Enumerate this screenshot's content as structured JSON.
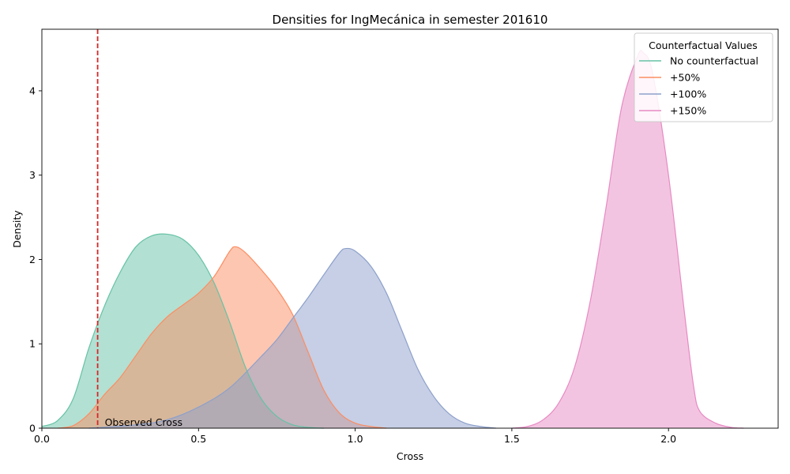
{
  "chart_data": {
    "type": "area",
    "title": "Densities for IngMecánica in semester 201610",
    "xlabel": "Cross",
    "ylabel": "Density",
    "xlim": [
      0,
      2.35
    ],
    "ylim": [
      0,
      4.73
    ],
    "x_ticks": [
      0.0,
      0.5,
      1.0,
      1.5,
      2.0
    ],
    "x_tick_labels": [
      "0.0",
      "0.5",
      "1.0",
      "1.5",
      "2.0"
    ],
    "y_ticks": [
      0,
      1,
      2,
      3,
      4
    ],
    "y_tick_labels": [
      "0",
      "1",
      "2",
      "3",
      "4"
    ],
    "grid": false,
    "legend": {
      "title": "Counterfactual Values",
      "placement": "top-right"
    },
    "reference_line": {
      "x": 0.178,
      "label": "Observed Cross",
      "color": "#d62728",
      "style": "dashed"
    },
    "series": [
      {
        "name": "No counterfactual",
        "color": "#66c2a5",
        "points": [
          [
            0.0,
            0.02
          ],
          [
            0.05,
            0.09
          ],
          [
            0.1,
            0.35
          ],
          [
            0.15,
            0.95
          ],
          [
            0.2,
            1.45
          ],
          [
            0.25,
            1.85
          ],
          [
            0.3,
            2.15
          ],
          [
            0.35,
            2.28
          ],
          [
            0.4,
            2.3
          ],
          [
            0.45,
            2.24
          ],
          [
            0.5,
            2.05
          ],
          [
            0.55,
            1.72
          ],
          [
            0.6,
            1.25
          ],
          [
            0.65,
            0.72
          ],
          [
            0.7,
            0.35
          ],
          [
            0.75,
            0.14
          ],
          [
            0.8,
            0.04
          ],
          [
            0.85,
            0.01
          ],
          [
            0.9,
            0.0
          ]
        ]
      },
      {
        "name": "+50%",
        "color": "#fc8d62",
        "points": [
          [
            0.05,
            0.0
          ],
          [
            0.1,
            0.03
          ],
          [
            0.15,
            0.17
          ],
          [
            0.2,
            0.4
          ],
          [
            0.25,
            0.6
          ],
          [
            0.3,
            0.86
          ],
          [
            0.35,
            1.12
          ],
          [
            0.4,
            1.32
          ],
          [
            0.45,
            1.46
          ],
          [
            0.5,
            1.6
          ],
          [
            0.55,
            1.8
          ],
          [
            0.6,
            2.1
          ],
          [
            0.62,
            2.15
          ],
          [
            0.65,
            2.08
          ],
          [
            0.7,
            1.88
          ],
          [
            0.75,
            1.65
          ],
          [
            0.8,
            1.35
          ],
          [
            0.85,
            0.9
          ],
          [
            0.9,
            0.45
          ],
          [
            0.95,
            0.18
          ],
          [
            1.0,
            0.06
          ],
          [
            1.05,
            0.02
          ],
          [
            1.1,
            0.0
          ]
        ]
      },
      {
        "name": "+100%",
        "color": "#8da0cb",
        "points": [
          [
            0.15,
            0.0
          ],
          [
            0.3,
            0.04
          ],
          [
            0.4,
            0.1
          ],
          [
            0.5,
            0.25
          ],
          [
            0.6,
            0.48
          ],
          [
            0.7,
            0.85
          ],
          [
            0.75,
            1.05
          ],
          [
            0.8,
            1.3
          ],
          [
            0.85,
            1.55
          ],
          [
            0.9,
            1.82
          ],
          [
            0.95,
            2.08
          ],
          [
            0.97,
            2.13
          ],
          [
            1.0,
            2.1
          ],
          [
            1.05,
            1.92
          ],
          [
            1.1,
            1.6
          ],
          [
            1.15,
            1.15
          ],
          [
            1.2,
            0.7
          ],
          [
            1.25,
            0.38
          ],
          [
            1.3,
            0.17
          ],
          [
            1.35,
            0.06
          ],
          [
            1.4,
            0.02
          ],
          [
            1.45,
            0.0
          ]
        ]
      },
      {
        "name": "+150%",
        "color": "#e78ac3",
        "points": [
          [
            1.5,
            0.0
          ],
          [
            1.55,
            0.02
          ],
          [
            1.6,
            0.1
          ],
          [
            1.65,
            0.3
          ],
          [
            1.7,
            0.72
          ],
          [
            1.75,
            1.5
          ],
          [
            1.8,
            2.6
          ],
          [
            1.85,
            3.8
          ],
          [
            1.9,
            4.4
          ],
          [
            1.92,
            4.45
          ],
          [
            1.95,
            4.2
          ],
          [
            2.0,
            3.0
          ],
          [
            2.05,
            1.4
          ],
          [
            2.08,
            0.5
          ],
          [
            2.1,
            0.2
          ],
          [
            2.15,
            0.06
          ],
          [
            2.2,
            0.01
          ],
          [
            2.24,
            0.0
          ]
        ]
      }
    ]
  }
}
